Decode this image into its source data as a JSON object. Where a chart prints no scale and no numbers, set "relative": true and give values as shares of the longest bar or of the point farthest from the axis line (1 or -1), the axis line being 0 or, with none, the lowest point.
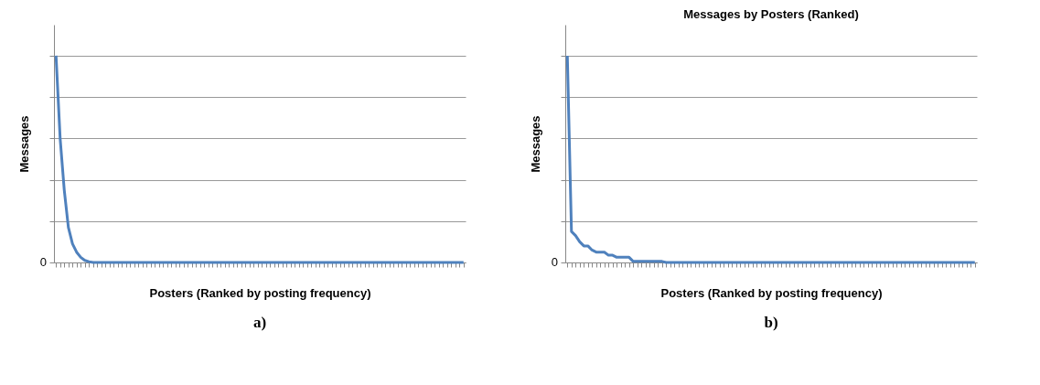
{
  "chart_data": [
    {
      "type": "line",
      "relative": true,
      "xlabel": "Posters (Ranked by posting frequency)",
      "ylabel": "Messages",
      "grid": "y",
      "tick_labels": false,
      "legend": false,
      "marker": "none",
      "line_style": "solid",
      "categories": [
        null,
        null,
        null,
        null,
        null,
        null,
        null,
        null,
        null,
        null,
        null,
        null,
        null,
        null,
        null,
        null,
        null,
        null,
        null,
        null,
        null,
        null,
        null,
        null,
        null,
        null,
        null,
        null,
        null,
        null,
        null,
        null,
        null,
        null,
        null,
        null,
        null,
        null,
        null,
        null,
        null,
        null,
        null,
        null,
        null,
        null,
        null,
        null,
        null,
        null,
        null,
        null,
        null,
        null,
        null,
        null,
        null,
        null,
        null,
        null,
        null,
        null,
        null,
        null,
        null,
        null,
        null,
        null,
        null,
        null,
        null,
        null,
        null,
        null,
        null,
        null,
        null,
        null,
        null,
        null,
        null,
        null,
        null,
        null,
        null,
        null,
        null,
        null,
        null,
        null,
        null,
        null,
        null,
        null,
        null,
        null,
        null,
        null,
        null,
        null
      ],
      "series": [
        {
          "color": "#4f81bd",
          "values": [
            1,
            0.6,
            0.35,
            0.17,
            0.09,
            0.05,
            0.025,
            0.01,
            0.004,
            0,
            0,
            0,
            0,
            0,
            0,
            0,
            0,
            0,
            0,
            0,
            0,
            0,
            0,
            0,
            0,
            0,
            0,
            0,
            0,
            0,
            0,
            0,
            0,
            0,
            0,
            0,
            0,
            0,
            0,
            0,
            0,
            0,
            0,
            0,
            0,
            0,
            0,
            0,
            0,
            0,
            0,
            0,
            0,
            0,
            0,
            0,
            0,
            0,
            0,
            0,
            0,
            0,
            0,
            0,
            0,
            0,
            0,
            0,
            0,
            0,
            0,
            0,
            0,
            0,
            0,
            0,
            0,
            0,
            0,
            0,
            0,
            0,
            0,
            0,
            0,
            0,
            0,
            0,
            0,
            0,
            0,
            0,
            0,
            0,
            0,
            0,
            0,
            0,
            0,
            0
          ]
        }
      ],
      "annotations": [
        "0",
        "a)"
      ]
    },
    {
      "type": "line",
      "relative": true,
      "title": "Messages by Posters (Ranked)",
      "xlabel": "Posters (Ranked by posting frequency)",
      "ylabel": "Messages",
      "grid": "y",
      "tick_labels": false,
      "legend": false,
      "marker": "none",
      "line_style": "solid",
      "categories": [
        null,
        null,
        null,
        null,
        null,
        null,
        null,
        null,
        null,
        null,
        null,
        null,
        null,
        null,
        null,
        null,
        null,
        null,
        null,
        null,
        null,
        null,
        null,
        null,
        null,
        null,
        null,
        null,
        null,
        null,
        null,
        null,
        null,
        null,
        null,
        null,
        null,
        null,
        null,
        null,
        null,
        null,
        null,
        null,
        null,
        null,
        null,
        null,
        null,
        null,
        null,
        null,
        null,
        null,
        null,
        null,
        null,
        null,
        null,
        null,
        null,
        null,
        null,
        null,
        null,
        null,
        null,
        null,
        null,
        null,
        null,
        null,
        null,
        null,
        null,
        null,
        null,
        null,
        null,
        null,
        null,
        null,
        null,
        null,
        null,
        null,
        null,
        null,
        null,
        null,
        null,
        null,
        null,
        null,
        null,
        null,
        null,
        null,
        null,
        null
      ],
      "series": [
        {
          "color": "#4f81bd",
          "values": [
            1,
            0.15,
            0.13,
            0.1,
            0.08,
            0.08,
            0.06,
            0.05,
            0.05,
            0.05,
            0.035,
            0.035,
            0.025,
            0.025,
            0.025,
            0.025,
            0.005,
            0.005,
            0.005,
            0.005,
            0.005,
            0.005,
            0.005,
            0.005,
            0,
            0,
            0,
            0,
            0,
            0,
            0,
            0,
            0,
            0,
            0,
            0,
            0,
            0,
            0,
            0,
            0,
            0,
            0,
            0,
            0,
            0,
            0,
            0,
            0,
            0,
            0,
            0,
            0,
            0,
            0,
            0,
            0,
            0,
            0,
            0,
            0,
            0,
            0,
            0,
            0,
            0,
            0,
            0,
            0,
            0,
            0,
            0,
            0,
            0,
            0,
            0,
            0,
            0,
            0,
            0,
            0,
            0,
            0,
            0,
            0,
            0,
            0,
            0,
            0,
            0,
            0,
            0,
            0,
            0,
            0,
            0,
            0,
            0,
            0,
            0
          ]
        }
      ],
      "annotations": [
        "0",
        "b)"
      ]
    }
  ]
}
